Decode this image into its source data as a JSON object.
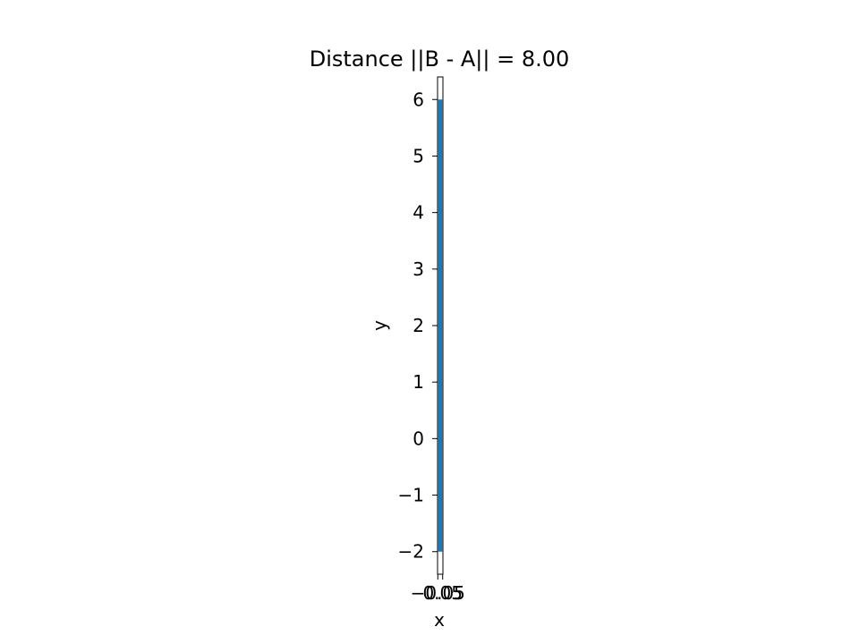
{
  "chart_data": {
    "type": "line",
    "title": "Distance ||B - A|| = 8.00",
    "xlabel": "x",
    "ylabel": "y",
    "series": [
      {
        "x": [
          0,
          0
        ],
        "y": [
          -2,
          6
        ],
        "color": "#1f77b4"
      }
    ],
    "xlim": [
      -0.055,
      0.055
    ],
    "ylim": [
      -2.4,
      6.4
    ],
    "yticks": [
      -2,
      -1,
      0,
      1,
      2,
      3,
      4,
      5,
      6
    ],
    "ytick_labels": [
      "−2",
      "−1",
      "0",
      "1",
      "2",
      "3",
      "4",
      "5",
      "6"
    ],
    "xticks": [
      -0.05,
      0.05
    ],
    "xtick_labels": [
      "−0.05",
      "0.05"
    ],
    "grid": false
  }
}
